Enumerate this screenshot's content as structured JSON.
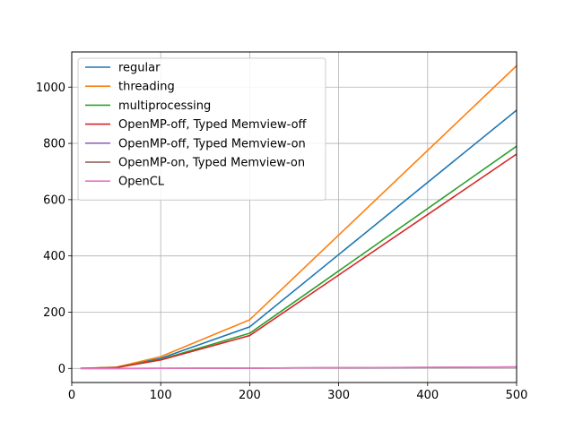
{
  "chart_data": {
    "type": "line",
    "title": "",
    "xlabel": "",
    "ylabel": "",
    "xlim": [
      0,
      500
    ],
    "ylim": [
      -50,
      1125
    ],
    "x_ticks": [
      0,
      100,
      200,
      300,
      400,
      500
    ],
    "y_ticks": [
      0,
      200,
      400,
      600,
      800,
      1000
    ],
    "x_tick_labels": [
      "0",
      "100",
      "200",
      "300",
      "400",
      "500"
    ],
    "y_tick_labels": [
      "0",
      "200",
      "400",
      "600",
      "800",
      "1000"
    ],
    "grid": true,
    "legend_position": "top-left",
    "x": [
      10,
      50,
      100,
      200,
      500
    ],
    "series": [
      {
        "name": "regular",
        "color": "#1f77b4",
        "values": [
          0.3,
          3.5,
          36,
          148,
          918
        ]
      },
      {
        "name": "threading",
        "color": "#ff7f0e",
        "values": [
          0.4,
          4.5,
          42,
          173,
          1076
        ]
      },
      {
        "name": "multiprocessing",
        "color": "#2ca02c",
        "values": [
          0.3,
          3.5,
          32,
          125,
          790
        ]
      },
      {
        "name": "OpenMP-off, Typed Memview-off",
        "color": "#d62728",
        "values": [
          0.3,
          3.0,
          30,
          117,
          762
        ]
      },
      {
        "name": "OpenMP-off, Typed Memview-on",
        "color": "#9467bd",
        "values": [
          0.0,
          0.1,
          0.3,
          1.0,
          4.5
        ]
      },
      {
        "name": "OpenMP-on, Typed Memview-on",
        "color": "#8c564b",
        "values": [
          0.0,
          0.1,
          0.3,
          1.2,
          5.0
        ]
      },
      {
        "name": "OpenCL",
        "color": "#e377c2",
        "values": [
          0.0,
          0.1,
          0.4,
          1.3,
          5.5
        ]
      }
    ]
  }
}
